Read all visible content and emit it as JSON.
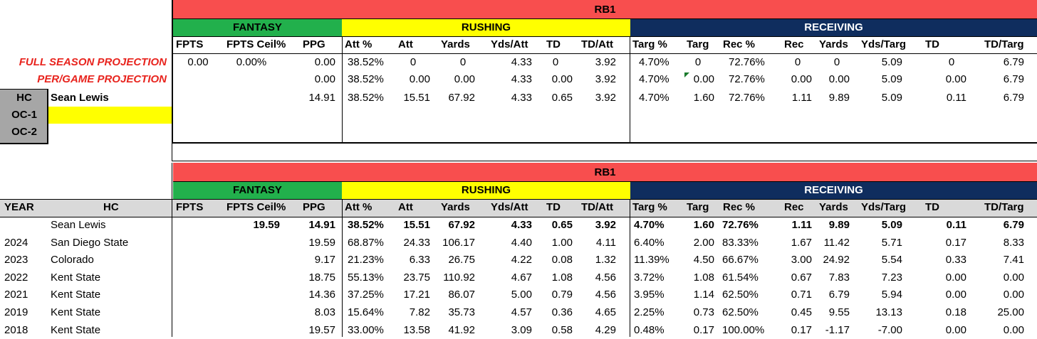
{
  "top": {
    "position_title": "RB1",
    "sections": {
      "fantasy": "FANTASY",
      "rushing": "RUSHING",
      "receiving": "RECEIVING"
    },
    "columns": [
      "FPTS",
      "FPTS Ceil%",
      "PPG",
      "Att %",
      "Att",
      "Yards",
      "Yds/Att",
      "TD",
      "TD/Att",
      "Targ %",
      "Targ",
      "Rec %",
      "Rec",
      "Yards",
      "Yds/Targ",
      "TD",
      "TD/Targ"
    ],
    "full_season": {
      "label": "FULL SEASON PROJECTION",
      "cells": [
        "0.00",
        "0.00%",
        "0.00",
        "38.52%",
        "0",
        "0",
        "4.33",
        "0",
        "3.92",
        "4.70%",
        "0",
        "72.76%",
        "0",
        "0",
        "5.09",
        "0",
        "6.79"
      ]
    },
    "per_game": {
      "label": "PER/GAME PROJECTION",
      "cells": [
        "",
        "",
        "0.00",
        "38.52%",
        "0.00",
        "0.00",
        "4.33",
        "0.00",
        "3.92",
        "4.70%",
        "0.00",
        "72.76%",
        "0.00",
        "0.00",
        "5.09",
        "0.00",
        "6.79"
      ]
    },
    "hc_row": {
      "cells": [
        "",
        "",
        "14.91",
        "38.52%",
        "15.51",
        "67.92",
        "4.33",
        "0.65",
        "3.92",
        "4.70%",
        "1.60",
        "72.76%",
        "1.11",
        "9.89",
        "5.09",
        "0.11",
        "6.79"
      ]
    },
    "coaches": [
      {
        "role": "HC",
        "name": "Sean Lewis"
      },
      {
        "role": "OC-1",
        "name": ""
      },
      {
        "role": "OC-2",
        "name": ""
      }
    ]
  },
  "bottom": {
    "position_title": "RB1",
    "sections": {
      "fantasy": "FANTASY",
      "rushing": "RUSHING",
      "receiving": "RECEIVING"
    },
    "year_header": "YEAR",
    "hc_header": "HC",
    "columns": [
      "FPTS",
      "FPTS Ceil%",
      "PPG",
      "Att %",
      "Att",
      "Yards",
      "Yds/Att",
      "TD",
      "TD/Att",
      "Targ %",
      "Targ",
      "Rec %",
      "Rec",
      "Yards",
      "Yds/Targ",
      "TD",
      "TD/Targ"
    ],
    "rows": [
      {
        "year": "",
        "hc": "Sean Lewis",
        "bold": true,
        "cells": [
          "",
          "19.59",
          "14.91",
          "38.52%",
          "15.51",
          "67.92",
          "4.33",
          "0.65",
          "3.92",
          "4.70%",
          "1.60",
          "72.76%",
          "1.11",
          "9.89",
          "5.09",
          "0.11",
          "6.79"
        ]
      },
      {
        "year": "2024",
        "hc": "San Diego State",
        "bold": false,
        "cells": [
          "",
          "",
          "19.59",
          "68.87%",
          "24.33",
          "106.17",
          "4.40",
          "1.00",
          "4.11",
          "6.40%",
          "2.00",
          "83.33%",
          "1.67",
          "11.42",
          "5.71",
          "0.17",
          "8.33"
        ]
      },
      {
        "year": "2023",
        "hc": "Colorado",
        "bold": false,
        "cells": [
          "",
          "",
          "9.17",
          "21.23%",
          "6.33",
          "26.75",
          "4.22",
          "0.08",
          "1.32",
          "11.39%",
          "4.50",
          "66.67%",
          "3.00",
          "24.92",
          "5.54",
          "0.33",
          "7.41"
        ]
      },
      {
        "year": "2022",
        "hc": "Kent State",
        "bold": false,
        "cells": [
          "",
          "",
          "18.75",
          "55.13%",
          "23.75",
          "110.92",
          "4.67",
          "1.08",
          "4.56",
          "3.72%",
          "1.08",
          "61.54%",
          "0.67",
          "7.83",
          "7.23",
          "0.00",
          "0.00"
        ]
      },
      {
        "year": "2021",
        "hc": "Kent State",
        "bold": false,
        "cells": [
          "",
          "",
          "14.36",
          "37.25%",
          "17.21",
          "86.07",
          "5.00",
          "0.79",
          "4.56",
          "3.95%",
          "1.14",
          "62.50%",
          "0.71",
          "6.79",
          "5.94",
          "0.00",
          "0.00"
        ]
      },
      {
        "year": "2019",
        "hc": "Kent State",
        "bold": false,
        "cells": [
          "",
          "",
          "8.03",
          "15.64%",
          "7.82",
          "35.73",
          "4.57",
          "0.36",
          "4.65",
          "2.25%",
          "0.73",
          "62.50%",
          "0.45",
          "9.55",
          "13.13",
          "0.18",
          "25.00"
        ]
      },
      {
        "year": "2018",
        "hc": "Kent State",
        "bold": false,
        "cells": [
          "",
          "",
          "19.57",
          "33.00%",
          "13.58",
          "41.92",
          "3.09",
          "0.58",
          "4.29",
          "0.48%",
          "0.17",
          "100.00%",
          "0.17",
          "-1.17",
          "-7.00",
          "0.00",
          "0.00"
        ]
      }
    ]
  },
  "colors": {
    "rb1": "#f84e4e",
    "fantasy": "#22b04c",
    "rushing": "#ffff00",
    "receiving": "#0f2d5e",
    "projection_label": "#e8231d",
    "coach_box": "#a6a6a6",
    "oc1_fill": "#ffff00"
  }
}
